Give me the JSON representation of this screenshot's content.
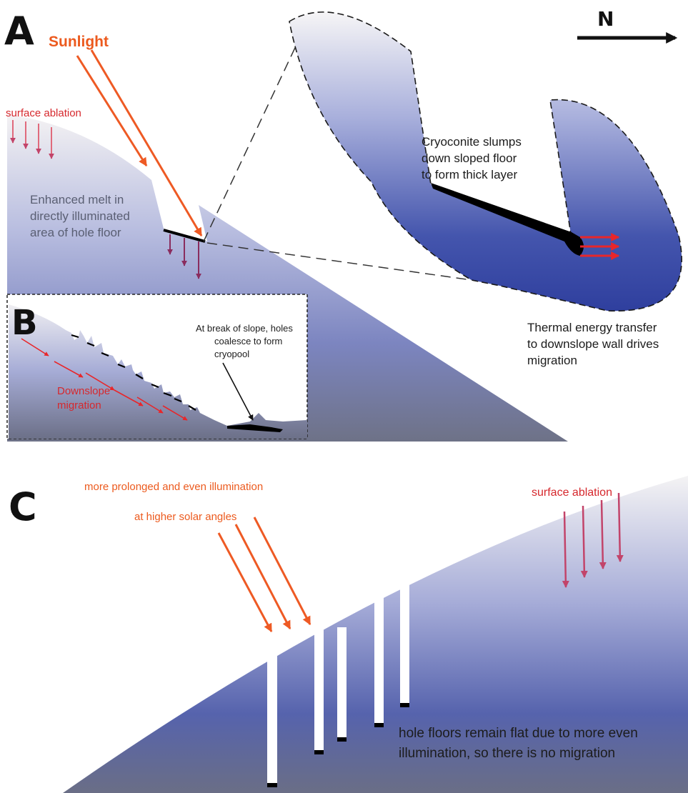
{
  "panels": {
    "a": {
      "letter": "A",
      "sunlight": "Sunlight",
      "surface_ablation": "surface ablation",
      "enhanced_melt": [
        "Enhanced melt in",
        "directly illuminated",
        "area of hole floor"
      ],
      "cryoconite": [
        "Cryoconite slumps",
        "down sloped floor",
        "to form thick layer"
      ],
      "thermal": [
        "Thermal energy transfer",
        "to downslope wall drives",
        "migration"
      ],
      "north": "N"
    },
    "b": {
      "letter": "B",
      "break_of_slope": [
        "At break of slope, holes",
        "coalesce to form",
        "cryopool"
      ],
      "downslope": [
        "Downslope",
        "migration"
      ]
    },
    "c": {
      "letter": "C",
      "illumination": [
        "more prolonged and even illumination",
        "at higher solar angles"
      ],
      "surface_ablation": "surface ablation",
      "hole_floors": [
        "hole floors remain flat due to more even",
        "illumination, so there is no migration"
      ]
    }
  },
  "colors": {
    "ice_top": "#f4f2f3",
    "ice_bottom": "#3a4aa6",
    "shadow": "#6d7088",
    "sunlight": "#ee5a24",
    "ablation": "#c2446a",
    "heat": "#e8262a"
  }
}
